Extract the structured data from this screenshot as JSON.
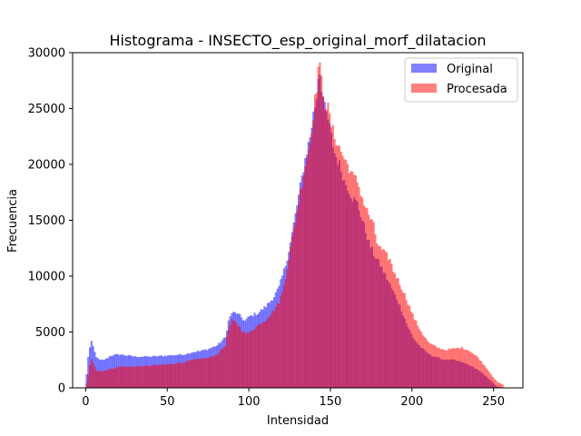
{
  "chart_data": {
    "type": "bar",
    "title": "Histograma - INSECTO_esp_original_morf_dilatacion",
    "xlabel": "Intensidad",
    "ylabel": "Frecuencia",
    "xlim": [
      -8,
      268
    ],
    "ylim": [
      0,
      30000
    ],
    "xticks": [
      0,
      50,
      100,
      150,
      200,
      250
    ],
    "yticks": [
      0,
      5000,
      10000,
      15000,
      20000,
      25000,
      30000
    ],
    "grid": false,
    "legend_position": "top-right",
    "bin_width": 1,
    "series": [
      {
        "name": "Original",
        "color": "#0000ff",
        "alpha": 0.5,
        "keypoints": [
          [
            0,
            1200
          ],
          [
            1,
            2800
          ],
          [
            2,
            3600
          ],
          [
            3,
            4100
          ],
          [
            4,
            3700
          ],
          [
            5,
            3200
          ],
          [
            6,
            2800
          ],
          [
            7,
            2600
          ],
          [
            8,
            2500
          ],
          [
            10,
            2500
          ],
          [
            12,
            2600
          ],
          [
            15,
            2900
          ],
          [
            20,
            3000
          ],
          [
            25,
            2900
          ],
          [
            30,
            2800
          ],
          [
            40,
            2800
          ],
          [
            50,
            2900
          ],
          [
            60,
            3000
          ],
          [
            65,
            3200
          ],
          [
            70,
            3300
          ],
          [
            75,
            3500
          ],
          [
            80,
            3800
          ],
          [
            85,
            4500
          ],
          [
            87,
            6000
          ],
          [
            89,
            6700
          ],
          [
            92,
            6700
          ],
          [
            95,
            6300
          ],
          [
            97,
            6000
          ],
          [
            100,
            6400
          ],
          [
            105,
            6700
          ],
          [
            110,
            7300
          ],
          [
            115,
            8200
          ],
          [
            118,
            9000
          ],
          [
            120,
            10000
          ],
          [
            122,
            11000
          ],
          [
            125,
            13000
          ],
          [
            128,
            15500
          ],
          [
            131,
            18000
          ],
          [
            134,
            20500
          ],
          [
            137,
            22500
          ],
          [
            139,
            24500
          ],
          [
            141,
            26000
          ],
          [
            142,
            28000
          ],
          [
            143,
            28300
          ],
          [
            144,
            27000
          ],
          [
            146,
            25000
          ],
          [
            148,
            24000
          ],
          [
            150,
            22500
          ],
          [
            152,
            21000
          ],
          [
            155,
            20000
          ],
          [
            158,
            18500
          ],
          [
            160,
            18000
          ],
          [
            163,
            17000
          ],
          [
            166,
            16500
          ],
          [
            168,
            15500
          ],
          [
            170,
            14500
          ],
          [
            173,
            13000
          ],
          [
            176,
            12000
          ],
          [
            180,
            11000
          ],
          [
            185,
            9500
          ],
          [
            190,
            8000
          ],
          [
            193,
            7000
          ],
          [
            196,
            5800
          ],
          [
            200,
            4500
          ],
          [
            205,
            3600
          ],
          [
            210,
            3000
          ],
          [
            215,
            2700
          ],
          [
            220,
            2500
          ],
          [
            225,
            2500
          ],
          [
            230,
            2300
          ],
          [
            235,
            2000
          ],
          [
            240,
            1600
          ],
          [
            245,
            1000
          ],
          [
            248,
            600
          ],
          [
            250,
            300
          ],
          [
            252,
            100
          ],
          [
            255,
            0
          ]
        ]
      },
      {
        "name": "Procesada",
        "color": "#ff0000",
        "alpha": 0.5,
        "keypoints": [
          [
            0,
            400
          ],
          [
            1,
            1200
          ],
          [
            2,
            2000
          ],
          [
            3,
            2500
          ],
          [
            4,
            2200
          ],
          [
            5,
            1900
          ],
          [
            6,
            1600
          ],
          [
            8,
            1500
          ],
          [
            10,
            1500
          ],
          [
            15,
            1700
          ],
          [
            20,
            1900
          ],
          [
            25,
            1900
          ],
          [
            30,
            1900
          ],
          [
            40,
            2000
          ],
          [
            50,
            2100
          ],
          [
            60,
            2300
          ],
          [
            65,
            2500
          ],
          [
            70,
            2600
          ],
          [
            75,
            2700
          ],
          [
            80,
            3000
          ],
          [
            85,
            3800
          ],
          [
            87,
            5200
          ],
          [
            89,
            6000
          ],
          [
            92,
            5800
          ],
          [
            95,
            5200
          ],
          [
            98,
            4800
          ],
          [
            100,
            5000
          ],
          [
            105,
            5600
          ],
          [
            110,
            6100
          ],
          [
            115,
            7000
          ],
          [
            118,
            7700
          ],
          [
            120,
            8500
          ],
          [
            122,
            10000
          ],
          [
            125,
            12500
          ],
          [
            128,
            15000
          ],
          [
            131,
            17500
          ],
          [
            134,
            20000
          ],
          [
            137,
            22000
          ],
          [
            139,
            24500
          ],
          [
            141,
            27000
          ],
          [
            142,
            28700
          ],
          [
            143,
            28500
          ],
          [
            144,
            27500
          ],
          [
            146,
            25500
          ],
          [
            148,
            25000
          ],
          [
            150,
            23500
          ],
          [
            152,
            22500
          ],
          [
            155,
            21500
          ],
          [
            158,
            20500
          ],
          [
            160,
            20000
          ],
          [
            163,
            19000
          ],
          [
            166,
            18500
          ],
          [
            168,
            17500
          ],
          [
            170,
            16500
          ],
          [
            173,
            15500
          ],
          [
            176,
            14500
          ],
          [
            178,
            13000
          ],
          [
            180,
            12500
          ],
          [
            183,
            12000
          ],
          [
            186,
            11500
          ],
          [
            188,
            10500
          ],
          [
            190,
            10000
          ],
          [
            193,
            9000
          ],
          [
            196,
            8000
          ],
          [
            200,
            6500
          ],
          [
            203,
            5600
          ],
          [
            206,
            4800
          ],
          [
            210,
            4000
          ],
          [
            215,
            3600
          ],
          [
            220,
            3400
          ],
          [
            225,
            3500
          ],
          [
            230,
            3600
          ],
          [
            235,
            3300
          ],
          [
            240,
            2700
          ],
          [
            245,
            1800
          ],
          [
            248,
            1200
          ],
          [
            250,
            800
          ],
          [
            252,
            500
          ],
          [
            255,
            300
          ]
        ]
      }
    ]
  }
}
